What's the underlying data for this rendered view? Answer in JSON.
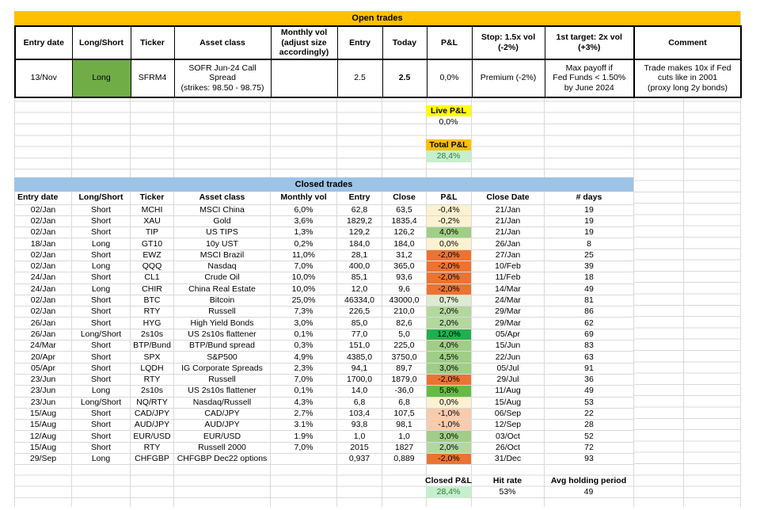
{
  "open_trades": {
    "title": "Open trades",
    "headers": [
      "Entry date",
      "Long/Short",
      "Ticker",
      "Asset class",
      "Monthly vol\n(adjust size\naccordingly)",
      "Entry",
      "Today",
      "P&L",
      "Stop: 1.5x vol\n(-2%)",
      "1st target: 2x vol\n(+3%)",
      "Comment"
    ],
    "row": {
      "entry_date": "13/Nov",
      "long_short": "Long",
      "ticker": "SFRM4",
      "asset_class": "SOFR Jun-24 Call Spread\n(strikes: 98.50 - 98.75)",
      "monthly_vol": "",
      "entry": "2.5",
      "today": "2.5",
      "pnl": "0,0%",
      "stop": "Premium (-2%)",
      "target": "Max payoff if\nFed Funds < 1.50%\nby June 2024",
      "comment": "Trade makes 10x if Fed\ncuts like in 2001\n(proxy long 2y bonds)"
    }
  },
  "summary": {
    "live_pnl_label": "Live P&L",
    "live_pnl_value": "0,0%",
    "total_pnl_label": "Total P&L",
    "total_pnl_value": "28,4%"
  },
  "closed_trades": {
    "title": "Closed trades",
    "headers": [
      "Entry date",
      "Long/Short",
      "Ticker",
      "Asset class",
      "Monthly vol",
      "Entry",
      "Close",
      "P&L",
      "Close Date",
      "# days"
    ],
    "rows": [
      {
        "entry_date": "02/Jan",
        "long_short": "Short",
        "ticker": "MCHI",
        "asset_class": "MSCI China",
        "monthly_vol": "6,0%",
        "entry": "62,8",
        "close": "63,5",
        "pnl": "-0,4%",
        "pnl_color": "cream",
        "close_date": "21/Jan",
        "days": "19"
      },
      {
        "entry_date": "02/Jan",
        "long_short": "Short",
        "ticker": "XAU",
        "asset_class": "Gold",
        "monthly_vol": "3,6%",
        "entry": "1829,2",
        "close": "1835,4",
        "pnl": "-0,2%",
        "pnl_color": "cream",
        "close_date": "21/Jan",
        "days": "19"
      },
      {
        "entry_date": "02/Jan",
        "long_short": "Short",
        "ticker": "TIP",
        "asset_class": "US TIPS",
        "monthly_vol": "1,3%",
        "entry": "129,2",
        "close": "126,2",
        "pnl": "4,0%",
        "pnl_color": "green3",
        "close_date": "21/Jan",
        "days": "19"
      },
      {
        "entry_date": "18/Jan",
        "long_short": "Long",
        "ticker": "GT10",
        "asset_class": "10y UST",
        "monthly_vol": "0,2%",
        "entry": "184,0",
        "close": "184,0",
        "pnl": "0,0%",
        "pnl_color": "cream",
        "close_date": "26/Jan",
        "days": "8"
      },
      {
        "entry_date": "02/Jan",
        "long_short": "Short",
        "ticker": "EWZ",
        "asset_class": "MSCI Brazil",
        "monthly_vol": "11,0%",
        "entry": "28,1",
        "close": "31,2",
        "pnl": "-2,0%",
        "pnl_color": "orange",
        "close_date": "27/Jan",
        "days": "25"
      },
      {
        "entry_date": "02/Jan",
        "long_short": "Long",
        "ticker": "QQQ",
        "asset_class": "Nasdaq",
        "monthly_vol": "7,0%",
        "entry": "400,0",
        "close": "365,0",
        "pnl": "-2,0%",
        "pnl_color": "orange",
        "close_date": "10/Feb",
        "days": "39"
      },
      {
        "entry_date": "24/Jan",
        "long_short": "Short",
        "ticker": "CL1",
        "asset_class": "Crude Oil",
        "monthly_vol": "10,0%",
        "entry": "85,1",
        "close": "93,6",
        "pnl": "-2,0%",
        "pnl_color": "orange",
        "close_date": "11/Feb",
        "days": "18"
      },
      {
        "entry_date": "24/Jan",
        "long_short": "Long",
        "ticker": "CHIR",
        "asset_class": "China Real Estate",
        "monthly_vol": "10,0%",
        "entry": "12,0",
        "close": "9,6",
        "pnl": "-2,0%",
        "pnl_color": "orange",
        "close_date": "14/Mar",
        "days": "49"
      },
      {
        "entry_date": "02/Jan",
        "long_short": "Short",
        "ticker": "BTC",
        "asset_class": "Bitcoin",
        "monthly_vol": "25,0%",
        "entry": "46334,0",
        "close": "43000,0",
        "pnl": "0,7%",
        "pnl_color": "green1",
        "close_date": "24/Mar",
        "days": "81"
      },
      {
        "entry_date": "02/Jan",
        "long_short": "Short",
        "ticker": "RTY",
        "asset_class": "Russell",
        "monthly_vol": "7,3%",
        "entry": "226,5",
        "close": "210,0",
        "pnl": "2,0%",
        "pnl_color": "green2",
        "close_date": "29/Mar",
        "days": "86"
      },
      {
        "entry_date": "26/Jan",
        "long_short": "Short",
        "ticker": "HYG",
        "asset_class": "High Yield Bonds",
        "monthly_vol": "3,0%",
        "entry": "85,0",
        "close": "82,6",
        "pnl": "2,0%",
        "pnl_color": "green2",
        "close_date": "29/Mar",
        "days": "62"
      },
      {
        "entry_date": "26/Jan",
        "long_short": "Long/Short",
        "ticker": "2s10s",
        "asset_class": "US 2s10s flattener",
        "monthly_vol": "0,1%",
        "entry": "77,0",
        "close": "5,0",
        "pnl": "12,0%",
        "pnl_color": "green5",
        "close_date": "05/Apr",
        "days": "69"
      },
      {
        "entry_date": "24/Mar",
        "long_short": "Short",
        "ticker": "BTP/Bund",
        "asset_class": "BTP/Bund spread",
        "monthly_vol": "0,3%",
        "entry": "151,0",
        "close": "225,0",
        "pnl": "4,0%",
        "pnl_color": "green3",
        "close_date": "15/Jun",
        "days": "83"
      },
      {
        "entry_date": "20/Apr",
        "long_short": "Short",
        "ticker": "SPX",
        "asset_class": "S&P500",
        "monthly_vol": "4,9%",
        "entry": "4385,0",
        "close": "3750,0",
        "pnl": "4,5%",
        "pnl_color": "green3",
        "close_date": "22/Jun",
        "days": "63"
      },
      {
        "entry_date": "05/Apr",
        "long_short": "Short",
        "ticker": "LQDH",
        "asset_class": "IG Corporate Spreads",
        "monthly_vol": "2,3%",
        "entry": "94,1",
        "close": "89,7",
        "pnl": "3,0%",
        "pnl_color": "green3",
        "close_date": "05/Jul",
        "days": "91"
      },
      {
        "entry_date": "23/Jun",
        "long_short": "Short",
        "ticker": "RTY",
        "asset_class": "Russell",
        "monthly_vol": "7,0%",
        "entry": "1700,0",
        "close": "1879,0",
        "pnl": "-2,0%",
        "pnl_color": "orange",
        "close_date": "29/Jul",
        "days": "36"
      },
      {
        "entry_date": "23/Jun",
        "long_short": "Long",
        "ticker": "2s10s",
        "asset_class": "US 2s10s flattener",
        "monthly_vol": "0,1%",
        "entry": "14,0",
        "close": "-36,0",
        "pnl": "5,8%",
        "pnl_color": "green4",
        "close_date": "11/Aug",
        "days": "49"
      },
      {
        "entry_date": "23/Jun",
        "long_short": "Long/Short",
        "ticker": "NQ/RTY",
        "asset_class": "Nasdaq/Russell",
        "monthly_vol": "4,3%",
        "entry": "6,8",
        "close": "6,8",
        "pnl": "0,0%",
        "pnl_color": "cream",
        "close_date": "15/Aug",
        "days": "53"
      },
      {
        "entry_date": "15/Aug",
        "long_short": "Short",
        "ticker": "CAD/JPY",
        "asset_class": "CAD/JPY",
        "monthly_vol": "2.7%",
        "entry": "103,4",
        "close": "107,5",
        "pnl": "-1,0%",
        "pnl_color": "salmon",
        "close_date": "06/Sep",
        "days": "22"
      },
      {
        "entry_date": "15/Aug",
        "long_short": "Short",
        "ticker": "AUD/JPY",
        "asset_class": "AUD/JPY",
        "monthly_vol": "3.1%",
        "entry": "93,8",
        "close": "98,1",
        "pnl": "-1,0%",
        "pnl_color": "salmon",
        "close_date": "12/Sep",
        "days": "28"
      },
      {
        "entry_date": "12/Aug",
        "long_short": "Short",
        "ticker": "EUR/USD",
        "asset_class": "EUR/USD",
        "monthly_vol": "1.9%",
        "entry": "1,0",
        "close": "1,0",
        "pnl": "3,0%",
        "pnl_color": "green3",
        "close_date": "03/Oct",
        "days": "52"
      },
      {
        "entry_date": "15/Aug",
        "long_short": "Short",
        "ticker": "RTY",
        "asset_class": "Russell 2000",
        "monthly_vol": "7,0%",
        "entry": "2015",
        "close": "1827",
        "pnl": "2,0%",
        "pnl_color": "green2",
        "close_date": "26/Oct",
        "days": "72"
      },
      {
        "entry_date": "29/Sep",
        "long_short": "Long",
        "ticker": "CHFGBP",
        "asset_class": "CHFGBP Dec22 options",
        "monthly_vol": "",
        "entry": "0,937",
        "close": "0,889",
        "pnl": "-2,0%",
        "pnl_color": "orange",
        "close_date": "31/Dec",
        "days": "93"
      }
    ]
  },
  "footer": {
    "closed_pnl_label": "Closed P&L",
    "closed_pnl_value": "28,4%",
    "hit_rate_label": "Hit rate",
    "hit_rate_value": "53%",
    "avg_label": "Avg holding period",
    "avg_value": "49"
  },
  "colors": {
    "open_title_bg": "#FFC000",
    "closed_title_bg": "#9DC3E6",
    "live_pnl_bg": "#FFFF00",
    "total_pnl_bg": "#FFC000",
    "result_bg": "#C6EFCE",
    "result_text": "#2E7D3B",
    "long_cell_bg": "#70AD47",
    "pnl": {
      "cream": "#FCF2CF",
      "salmon": "#F8CBAD",
      "orange": "#EC7331",
      "green1": "#DCEBD1",
      "green2": "#B3D89E",
      "green3": "#A0CE86",
      "green4": "#66BB44",
      "green5": "#21B04E"
    }
  }
}
